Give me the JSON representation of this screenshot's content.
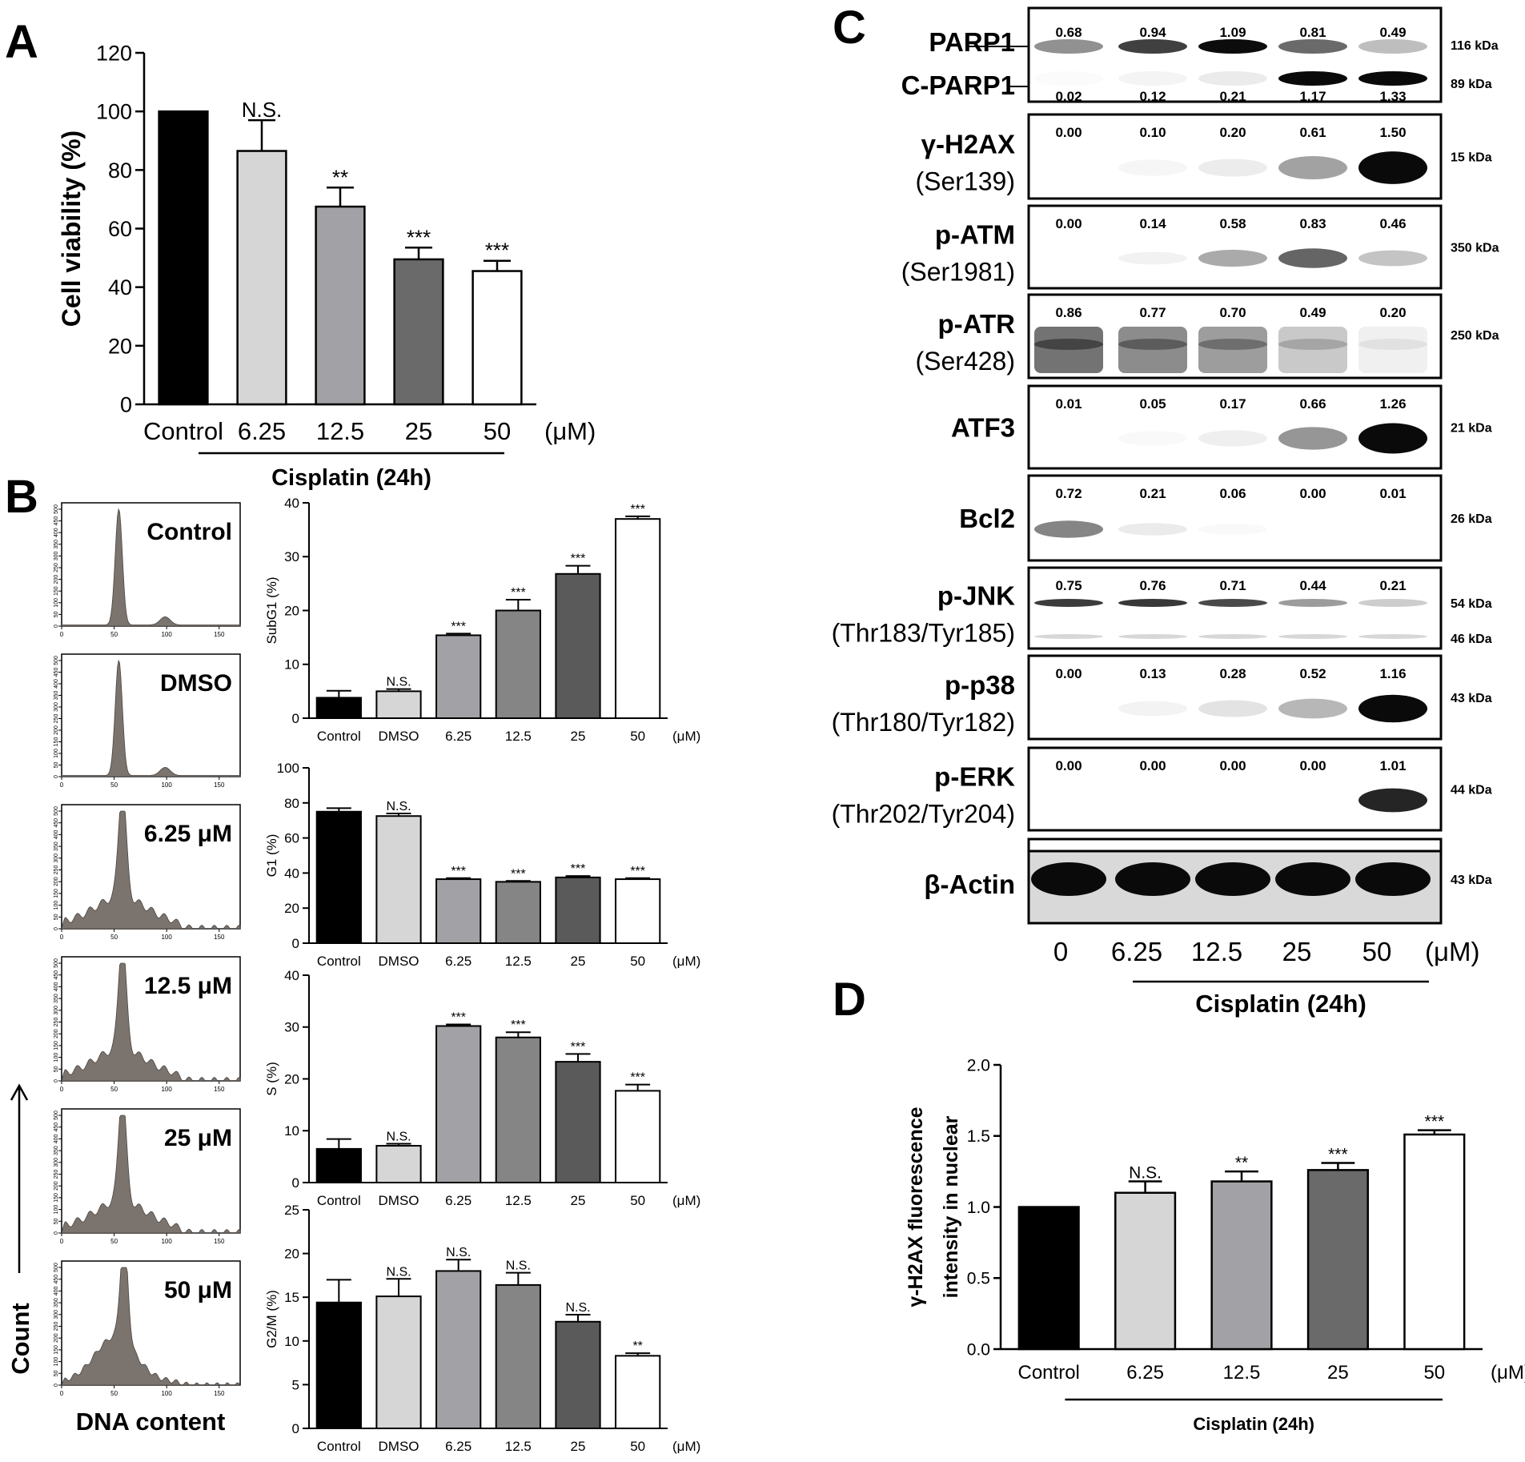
{
  "panel_labels": {
    "a": "A",
    "b": "B",
    "c": "C",
    "d": "D"
  },
  "colors": [
    "#000000",
    "#d6d6d6",
    "#a2a2a6",
    "#6a6a6a",
    "#ffffff"
  ],
  "colors6": [
    "#000000",
    "#d6d6d6",
    "#a2a2a6",
    "#858585",
    "#5a5a5a",
    "#ffffff"
  ],
  "chart_data": [
    {
      "id": "A",
      "type": "bar",
      "title": "",
      "ylabel": "Cell viability (%)",
      "categories": [
        "Control",
        "6.25",
        "12.5",
        "25",
        "50"
      ],
      "unit": "(μM)",
      "group_label": "Cisplatin (24h)",
      "values": [
        100,
        86.5,
        67.5,
        49.5,
        45.5
      ],
      "errors": [
        0,
        10.5,
        6.5,
        4,
        3.5
      ],
      "significance": [
        "",
        "N.S.",
        "**",
        "***",
        "***"
      ],
      "ylim": [
        0,
        120
      ],
      "yticks": [
        0,
        20,
        40,
        60,
        80,
        100,
        120
      ]
    },
    {
      "id": "B-subG1",
      "type": "bar",
      "ylabel": "SubG1 (%)",
      "categories": [
        "Control",
        "DMSO",
        "6.25",
        "12.5",
        "25",
        "50"
      ],
      "unit": "(μM)",
      "values": [
        3.8,
        5.0,
        15.4,
        20.0,
        26.8,
        37.0
      ],
      "errors": [
        1.3,
        0.4,
        0.3,
        2.0,
        1.5,
        0.5
      ],
      "significance": [
        "",
        "N.S.",
        "***",
        "***",
        "***",
        "***"
      ],
      "ylim": [
        0,
        40
      ],
      "yticks": [
        0,
        10,
        20,
        30,
        40
      ]
    },
    {
      "id": "B-G1",
      "type": "bar",
      "ylabel": "G1 (%)",
      "categories": [
        "Control",
        "DMSO",
        "6.25",
        "12.5",
        "25",
        "50"
      ],
      "unit": "(μM)",
      "values": [
        75.0,
        72.5,
        36.5,
        35.0,
        37.5,
        36.5
      ],
      "errors": [
        2.0,
        1.5,
        0.6,
        0.5,
        0.8,
        0.6
      ],
      "significance": [
        "",
        "N.S.",
        "***",
        "***",
        "***",
        "***"
      ],
      "ylim": [
        0,
        100
      ],
      "yticks": [
        0,
        20,
        40,
        60,
        80,
        100
      ]
    },
    {
      "id": "B-S",
      "type": "bar",
      "ylabel": "S (%)",
      "categories": [
        "Control",
        "DMSO",
        "6.25",
        "12.5",
        "25",
        "50"
      ],
      "unit": "(μM)",
      "values": [
        6.5,
        7.1,
        30.2,
        28.0,
        23.3,
        17.7
      ],
      "errors": [
        1.9,
        0.4,
        0.3,
        1.0,
        1.5,
        1.2
      ],
      "significance": [
        "",
        "N.S.",
        "***",
        "***",
        "***",
        "***"
      ],
      "ylim": [
        0,
        40
      ],
      "yticks": [
        0,
        10,
        20,
        30,
        40
      ]
    },
    {
      "id": "B-G2M",
      "type": "bar",
      "ylabel": "G2/M (%)",
      "categories": [
        "Control",
        "DMSO",
        "6.25",
        "12.5",
        "25",
        "50"
      ],
      "unit": "(μM)",
      "values": [
        14.4,
        15.1,
        18.0,
        16.4,
        12.2,
        8.3
      ],
      "errors": [
        2.6,
        2.0,
        1.3,
        1.4,
        0.8,
        0.3
      ],
      "significance": [
        "",
        "N.S.",
        "N.S.",
        "N.S.",
        "N.S.",
        "**"
      ],
      "ylim": [
        0,
        25
      ],
      "yticks": [
        0,
        5,
        10,
        15,
        20,
        25
      ]
    },
    {
      "id": "D",
      "type": "bar",
      "ylabel": "γ-H2AX fluorescence intensity in nuclear",
      "ylabel_lines": [
        "γ-H2AX fluorescence",
        "intensity in nuclear"
      ],
      "categories": [
        "Control",
        "6.25",
        "12.5",
        "25",
        "50"
      ],
      "unit": "(μM)",
      "group_label": "Cisplatin (24h)",
      "values": [
        1.0,
        1.1,
        1.18,
        1.26,
        1.51
      ],
      "errors": [
        0,
        0.08,
        0.07,
        0.05,
        0.03
      ],
      "significance": [
        "",
        "N.S.",
        "**",
        "***",
        "***"
      ],
      "ylim": [
        0,
        2.0
      ],
      "yticks": [
        "0.0",
        "0.5",
        "1.0",
        "1.5",
        "2.0"
      ]
    }
  ],
  "histograms": {
    "labels": [
      "Control",
      "DMSO",
      "6.25 μM",
      "12.5 μM",
      "25 μM",
      "50 μM"
    ],
    "y_ticks": [
      "0",
      "50",
      "100",
      "150",
      "200",
      "250",
      "300",
      "350",
      "400",
      "450",
      "500"
    ],
    "x_ticks": [
      "0",
      "50",
      "100",
      "150"
    ],
    "xlabel": "DNA content",
    "ylabel": "Count",
    "fill": "#7b746e"
  },
  "western_blot": {
    "lanes": [
      "0",
      "6.25",
      "12.5",
      "25",
      "50"
    ],
    "unit": "(μM)",
    "group_label": "Cisplatin (24h)",
    "blots": [
      {
        "label": "PARP1",
        "sublabel": "",
        "values": [
          "0.68",
          "0.94",
          "1.09",
          "0.81",
          "0.49"
        ],
        "kda": [
          "116 kDa"
        ],
        "intensity": [
          0.68,
          0.94,
          1.09,
          0.81,
          0.49
        ],
        "style": "band"
      },
      {
        "label": "C-PARP1",
        "sublabel": "",
        "values": [
          "0.02",
          "0.12",
          "0.21",
          "1.17",
          "1.33"
        ],
        "kda": [
          "89 kDa"
        ],
        "intensity": [
          0.02,
          0.12,
          0.21,
          1.17,
          1.33
        ],
        "style": "band"
      },
      {
        "label": "γ-H2AX",
        "sublabel": "(Ser139)",
        "values": [
          "0.00",
          "0.10",
          "0.20",
          "0.61",
          "1.50"
        ],
        "kda": [
          "15 kDa"
        ],
        "intensity": [
          0.0,
          0.1,
          0.2,
          0.61,
          1.5
        ],
        "style": "band"
      },
      {
        "label": "p-ATM",
        "sublabel": "(Ser1981)",
        "values": [
          "0.00",
          "0.14",
          "0.58",
          "0.83",
          "0.46"
        ],
        "kda": [
          "350 kDa"
        ],
        "intensity": [
          0.0,
          0.14,
          0.58,
          0.83,
          0.46
        ],
        "style": "band"
      },
      {
        "label": "p-ATR",
        "sublabel": "(Ser428)",
        "values": [
          "0.86",
          "0.77",
          "0.70",
          "0.49",
          "0.20"
        ],
        "kda": [
          "250 kDa"
        ],
        "intensity": [
          0.86,
          0.77,
          0.7,
          0.49,
          0.2
        ],
        "style": "smear"
      },
      {
        "label": "ATF3",
        "sublabel": "",
        "values": [
          "0.01",
          "0.05",
          "0.17",
          "0.66",
          "1.26"
        ],
        "kda": [
          "21 kDa"
        ],
        "intensity": [
          0.01,
          0.05,
          0.17,
          0.66,
          1.26
        ],
        "style": "band"
      },
      {
        "label": "Bcl2",
        "sublabel": "",
        "values": [
          "0.72",
          "0.21",
          "0.06",
          "0.00",
          "0.01"
        ],
        "kda": [
          "26 kDa"
        ],
        "intensity": [
          0.72,
          0.21,
          0.06,
          0.0,
          0.01
        ],
        "style": "band"
      },
      {
        "label": "p-JNK",
        "sublabel": "(Thr183/Tyr185)",
        "values": [
          "0.75",
          "0.76",
          "0.71",
          "0.44",
          "0.21"
        ],
        "kda": [
          "54 kDa",
          "46 kDa"
        ],
        "intensity": [
          0.75,
          0.76,
          0.71,
          0.44,
          0.21
        ],
        "style": "double"
      },
      {
        "label": "p-p38",
        "sublabel": "(Thr180/Tyr182)",
        "values": [
          "0.00",
          "0.13",
          "0.28",
          "0.52",
          "1.16"
        ],
        "kda": [
          "43 kDa"
        ],
        "intensity": [
          0.0,
          0.13,
          0.28,
          0.52,
          1.16
        ],
        "style": "band"
      },
      {
        "label": "p-ERK",
        "sublabel": "(Thr202/Tyr204)",
        "values": [
          "0.00",
          "0.00",
          "0.00",
          "0.00",
          "1.01"
        ],
        "kda": [
          "44 kDa"
        ],
        "intensity": [
          0.0,
          0.0,
          0.0,
          0.0,
          1.01
        ],
        "style": "band"
      },
      {
        "label": "β-Actin",
        "sublabel": "",
        "values": [],
        "kda": [
          "43 kDa"
        ],
        "intensity": [
          1.3,
          1.3,
          1.3,
          1.3,
          1.3
        ],
        "style": "band"
      }
    ]
  }
}
